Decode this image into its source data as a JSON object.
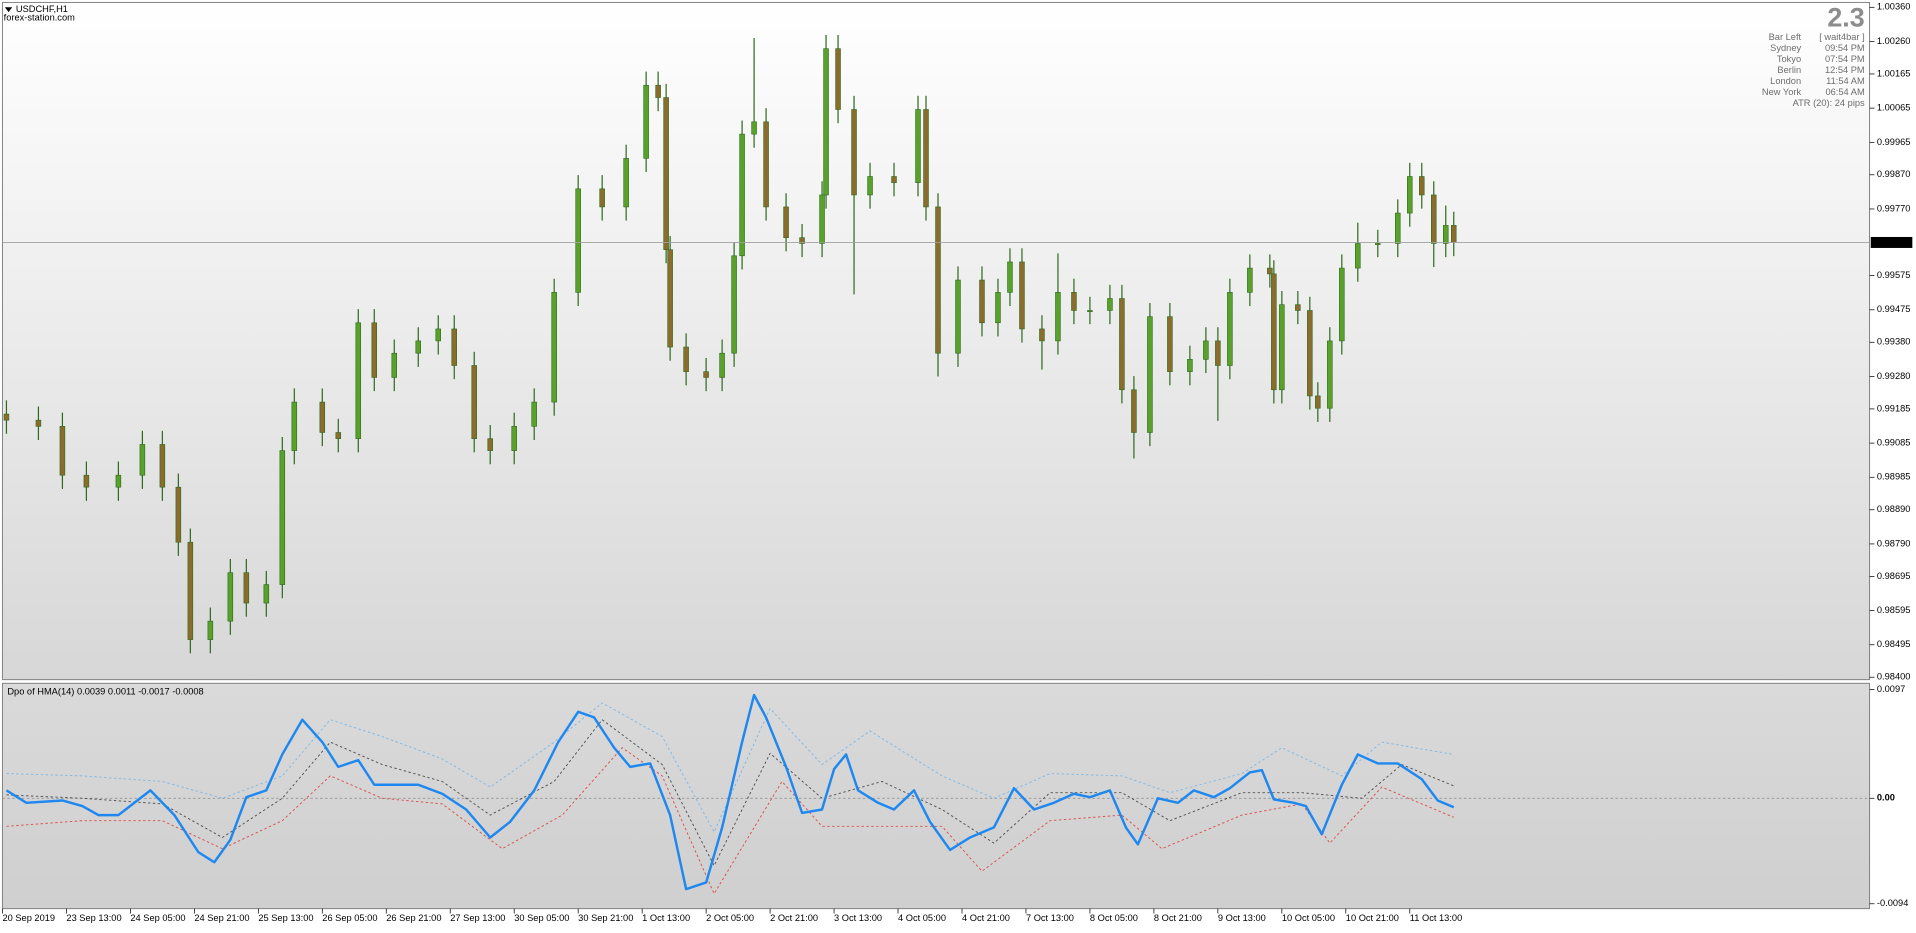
{
  "chart_data": [
    {
      "type": "candlestick",
      "title": "USDCHF,H1",
      "subtitle": "forex-station.com",
      "up_color": "#58a12a",
      "down_color": "#8a6d2c",
      "wick_color": "#2f6b1f",
      "xlim": [
        0,
        467
      ],
      "xticks": [
        {
          "value": 0,
          "label": "20 Sep 2019"
        },
        {
          "value": 16,
          "label": "23 Sep 13:00"
        },
        {
          "value": 32,
          "label": "24 Sep 05:00"
        },
        {
          "value": 48,
          "label": "24 Sep 21:00"
        },
        {
          "value": 64,
          "label": "25 Sep 13:00"
        },
        {
          "value": 80,
          "label": "26 Sep 05:00"
        },
        {
          "value": 96,
          "label": "26 Sep 21:00"
        },
        {
          "value": 112,
          "label": "27 Sep 13:00"
        },
        {
          "value": 128,
          "label": "30 Sep 05:00"
        },
        {
          "value": 144,
          "label": "30 Sep 21:00"
        },
        {
          "value": 160,
          "label": "1 Oct 13:00"
        },
        {
          "value": 176,
          "label": "2 Oct 05:00"
        },
        {
          "value": 192,
          "label": "2 Oct 21:00"
        },
        {
          "value": 208,
          "label": "3 Oct 13:00"
        },
        {
          "value": 224,
          "label": "4 Oct 05:00"
        },
        {
          "value": 240,
          "label": "4 Oct 21:00"
        },
        {
          "value": 256,
          "label": "7 Oct 13:00"
        },
        {
          "value": 272,
          "label": "8 Oct 05:00"
        },
        {
          "value": 288,
          "label": "8 Oct 21:00"
        },
        {
          "value": 304,
          "label": "9 Oct 13:00"
        },
        {
          "value": 320,
          "label": "10 Oct 05:00"
        },
        {
          "value": 336,
          "label": "10 Oct 21:00"
        },
        {
          "value": 352,
          "label": "11 Oct 13:00"
        }
      ],
      "ylim": [
        0.984,
        1.0036
      ],
      "yticks": [
        {
          "value": 1.0036,
          "label": "1.00360"
        },
        {
          "value": 1.0026,
          "label": "1.00260"
        },
        1.00165,
        1.00065,
        0.99965,
        {
          "value": 0.9987,
          "label": "0.99870"
        },
        {
          "value": 0.9977,
          "label": "0.99770"
        },
        0.99575,
        0.99475,
        {
          "value": 0.9938,
          "label": "0.99380"
        },
        {
          "value": 0.9928,
          "label": "0.99280"
        },
        0.99185,
        0.99085,
        0.98985,
        {
          "value": 0.9889,
          "label": "0.98890"
        },
        {
          "value": 0.9879,
          "label": "0.98790"
        },
        0.98695,
        0.98595,
        0.98495,
        {
          "value": 0.984,
          "label": "0.98400"
        }
      ],
      "current_price": 0.99672,
      "info": {
        "big": "2.3",
        "rows": [
          [
            "Bar Left",
            "[ wait4bar ]"
          ],
          [
            "Sydney",
            "09:54 PM"
          ],
          [
            "Tokyo",
            "07:54 PM"
          ],
          [
            "Berlin",
            "12:54 PM"
          ],
          [
            "London",
            "11:54 AM"
          ],
          [
            "New York",
            "06:54 AM"
          ]
        ],
        "footer": "ATR (20): 24 pips"
      },
      "x": [
        1,
        9,
        15,
        21,
        29,
        35,
        40,
        44,
        47,
        52,
        57,
        61,
        66,
        70,
        73,
        80,
        84,
        89,
        93,
        98,
        104,
        109,
        113,
        118,
        122,
        128,
        133,
        138,
        144,
        150,
        156,
        161,
        164,
        166,
        167,
        171,
        176,
        180,
        183,
        185,
        188,
        191,
        196,
        200,
        205,
        206,
        209,
        213,
        217,
        223,
        229,
        231,
        234,
        239,
        245,
        249,
        252,
        255,
        260,
        264,
        268,
        272,
        277,
        280,
        283,
        287,
        292,
        297,
        301,
        304,
        307,
        312,
        317,
        318,
        320,
        324,
        327,
        329,
        332,
        335,
        339,
        344,
        349,
        352,
        355,
        358,
        361,
        363
      ],
      "open": [
        0.9917,
        0.99152,
        0.99134,
        0.98991,
        0.98956,
        0.98991,
        0.99081,
        0.98956,
        0.98795,
        0.9851,
        0.98564,
        0.98706,
        0.98617,
        0.98671,
        0.99063,
        0.99205,
        0.99116,
        0.99098,
        0.99437,
        0.99277,
        0.99348,
        0.99384,
        0.99419,
        0.99312,
        0.99098,
        0.99063,
        0.99134,
        0.99205,
        0.99526,
        0.99829,
        0.99776,
        0.99918,
        1.00132,
        1.00096,
        0.99651,
        0.99366,
        0.99294,
        0.99277,
        0.99348,
        0.99633,
        0.99989,
        1.00025,
        0.99776,
        0.99686,
        0.99669,
        0.99811,
        1.00239,
        1.00061,
        0.99811,
        0.99865,
        0.99847,
        1.00061,
        0.99776,
        0.99348,
        0.99562,
        0.99437,
        0.99526,
        0.99615,
        0.99419,
        0.99384,
        0.99526,
        0.99473,
        0.99473,
        0.99508,
        0.99241,
        0.99116,
        0.99455,
        0.99294,
        0.9933,
        0.99384,
        0.99312,
        0.99526,
        0.99597,
        0.9958,
        0.99241,
        0.9949,
        0.99473,
        0.99223,
        0.99187,
        0.99384,
        0.99597,
        0.99669,
        0.99669,
        0.99758,
        0.99865,
        0.99811,
        0.99669,
        0.99722
      ],
      "high": [
        0.9921,
        0.99192,
        0.99174,
        0.99031,
        0.99031,
        0.99121,
        0.99121,
        0.98996,
        0.98835,
        0.98604,
        0.98746,
        0.98746,
        0.98711,
        0.99103,
        0.99245,
        0.99245,
        0.99156,
        0.99477,
        0.99477,
        0.99388,
        0.99424,
        0.99459,
        0.99459,
        0.99352,
        0.99138,
        0.99174,
        0.99245,
        0.99566,
        0.99869,
        0.99869,
        0.99958,
        1.00172,
        1.00172,
        1.00136,
        0.99691,
        0.99406,
        0.99334,
        0.99388,
        0.99673,
        1.00029,
        1.0027,
        1.00065,
        0.99816,
        0.99726,
        0.99851,
        1.00279,
        1.00279,
        1.00101,
        0.99905,
        0.99905,
        1.00101,
        1.00101,
        0.99816,
        0.99602,
        0.99602,
        0.99566,
        0.99655,
        0.99655,
        0.99459,
        0.9964,
        0.99566,
        0.99513,
        0.99548,
        0.99548,
        0.99281,
        0.99495,
        0.99495,
        0.9937,
        0.99424,
        0.99424,
        0.99566,
        0.99637,
        0.99637,
        0.9962,
        0.9953,
        0.9953,
        0.99513,
        0.99263,
        0.99424,
        0.99637,
        0.9973,
        0.99709,
        0.99798,
        0.99905,
        0.99905,
        0.99851,
        0.9978,
        0.99762
      ],
      "low": [
        0.99112,
        0.99094,
        0.98951,
        0.98916,
        0.98916,
        0.98951,
        0.98916,
        0.98755,
        0.9847,
        0.9847,
        0.98524,
        0.98577,
        0.98577,
        0.98631,
        0.99023,
        0.99076,
        0.99058,
        0.99058,
        0.99237,
        0.99237,
        0.99308,
        0.99344,
        0.99272,
        0.99058,
        0.99023,
        0.99023,
        0.99094,
        0.99165,
        0.99486,
        0.99736,
        0.99736,
        0.99878,
        1.00056,
        0.99611,
        0.99326,
        0.99254,
        0.99237,
        0.99237,
        0.99308,
        0.99593,
        0.99949,
        0.99736,
        0.99646,
        0.99629,
        0.99629,
        0.99771,
        1.00021,
        0.9952,
        0.99771,
        0.99807,
        0.99807,
        0.99736,
        0.9928,
        0.99308,
        0.99397,
        0.99397,
        0.99486,
        0.99379,
        0.993,
        0.99344,
        0.99433,
        0.99433,
        0.99433,
        0.99201,
        0.9904,
        0.99076,
        0.99254,
        0.99254,
        0.9929,
        0.9915,
        0.99272,
        0.99486,
        0.9954,
        0.99201,
        0.99201,
        0.99433,
        0.99183,
        0.99147,
        0.99147,
        0.99344,
        0.99557,
        0.99629,
        0.99629,
        0.99718,
        0.99771,
        0.996,
        0.99629,
        0.99632
      ],
      "close": [
        0.99152,
        0.99134,
        0.98991,
        0.98956,
        0.98991,
        0.99081,
        0.98956,
        0.98795,
        0.9851,
        0.98564,
        0.98706,
        0.98617,
        0.98671,
        0.99063,
        0.99205,
        0.99116,
        0.99098,
        0.99437,
        0.99277,
        0.99348,
        0.99384,
        0.99419,
        0.99312,
        0.99098,
        0.99063,
        0.99134,
        0.99205,
        0.99526,
        0.99829,
        0.99776,
        0.99918,
        1.00132,
        1.00096,
        0.99651,
        0.99366,
        0.99294,
        0.99277,
        0.99348,
        0.99633,
        0.99989,
        1.00025,
        0.99776,
        0.99686,
        0.99669,
        0.99811,
        1.00239,
        1.00061,
        0.99811,
        0.99865,
        0.99847,
        1.00061,
        0.99776,
        0.99348,
        0.99562,
        0.99437,
        0.99526,
        0.99615,
        0.99419,
        0.99384,
        0.99526,
        0.99473,
        0.99473,
        0.99508,
        0.99241,
        0.99116,
        0.99455,
        0.99294,
        0.9933,
        0.99384,
        0.99312,
        0.99526,
        0.99597,
        0.9958,
        0.99241,
        0.9949,
        0.99473,
        0.99223,
        0.99187,
        0.99384,
        0.99597,
        0.99669,
        0.99669,
        0.99758,
        0.99865,
        0.99811,
        0.99669,
        0.99722,
        0.99672
      ]
    },
    {
      "type": "line",
      "title": "Dpo of HMA(14) 0.0039 0.0011 -0.0017 -0.0008",
      "ylim": [
        -0.0094,
        0.0097
      ],
      "yticks": [
        0.0097,
        {
          "value": 0,
          "label": "0.00"
        },
        -0.0094
      ],
      "series": [
        {
          "color": "#7fb9e6",
          "line_style": "dashed",
          "x": [
            1,
            20,
            40,
            55,
            70,
            82,
            95,
            110,
            122,
            138,
            150,
            165,
            178,
            192,
            205,
            217,
            235,
            248,
            262,
            280,
            292,
            310,
            320,
            335,
            345,
            363
          ],
          "values": [
            0.0022,
            0.002,
            0.0015,
            0,
            0.002,
            0.007,
            0.0055,
            0.0035,
            0.001,
            0.005,
            0.0085,
            0.0055,
            -0.003,
            0.008,
            0.003,
            0.006,
            0.002,
            0,
            0.0022,
            0.002,
            0.0005,
            0.0022,
            0.0045,
            0.002,
            0.005,
            0.0039
          ]
        },
        {
          "color": "#555555",
          "line_style": "dashed",
          "x": [
            1,
            20,
            40,
            55,
            70,
            82,
            95,
            110,
            122,
            138,
            150,
            165,
            178,
            192,
            205,
            220,
            235,
            248,
            262,
            280,
            292,
            310,
            325,
            340,
            350,
            363
          ],
          "values": [
            0.0003,
            0,
            -0.0005,
            -0.0035,
            0,
            0.005,
            0.003,
            0.0015,
            -0.0015,
            0.0015,
            0.007,
            0.003,
            -0.006,
            0.004,
            0,
            0.0015,
            -0.001,
            -0.004,
            0.0005,
            0.0005,
            -0.002,
            0.0005,
            0.0005,
            0,
            0.003,
            0.0011
          ]
        },
        {
          "color": "#d9534f",
          "line_style": "dashed",
          "x": [
            1,
            20,
            40,
            55,
            70,
            82,
            95,
            110,
            125,
            140,
            155,
            165,
            178,
            195,
            205,
            220,
            235,
            245,
            262,
            280,
            290,
            310,
            325,
            332,
            345,
            363
          ],
          "values": [
            -0.0025,
            -0.002,
            -0.002,
            -0.0045,
            -0.002,
            0.002,
            0,
            -0.0005,
            -0.0045,
            -0.0015,
            0.0045,
            0.002,
            -0.0085,
            0.0015,
            -0.0025,
            -0.0025,
            -0.0025,
            -0.0065,
            -0.002,
            -0.0015,
            -0.0045,
            -0.0015,
            -0.0005,
            -0.004,
            0.001,
            -0.0017
          ]
        },
        {
          "color": "#1e88f0",
          "line_style": "solid",
          "x": [
            1,
            6,
            15,
            20,
            24,
            29,
            37,
            43,
            49,
            53,
            57,
            61,
            66,
            70,
            75,
            80,
            84,
            89,
            93,
            98,
            104,
            110,
            116,
            122,
            127,
            133,
            139,
            144,
            148,
            153,
            157,
            162,
            167,
            171,
            176,
            180,
            185,
            188,
            191,
            196,
            200,
            205,
            208,
            211,
            214,
            219,
            223,
            228,
            232,
            237,
            242,
            248,
            253,
            258,
            263,
            268,
            272,
            277,
            281,
            284,
            289,
            294,
            298,
            303,
            307,
            312,
            315,
            318,
            323,
            326,
            330,
            335,
            339,
            344,
            349,
            355,
            359,
            363
          ],
          "values": [
            0.0007,
            -0.0004,
            -0.0002,
            -0.0007,
            -0.0015,
            -0.0015,
            0.0007,
            -0.0015,
            -0.0048,
            -0.0057,
            -0.0037,
            0.0001,
            0.0007,
            0.0039,
            0.007,
            0.005,
            0.0028,
            0.0034,
            0.0012,
            0.0012,
            0.0012,
            0.0004,
            -0.001,
            -0.0035,
            -0.0021,
            0.0007,
            0.005,
            0.0077,
            0.0072,
            0.0045,
            0.0028,
            0.0031,
            -0.0015,
            -0.0081,
            -0.0075,
            -0.0026,
            0.005,
            0.0092,
            0.0072,
            0.0028,
            -0.0013,
            -0.001,
            0.0026,
            0.0039,
            0.0007,
            -0.0004,
            -0.001,
            0.0007,
            -0.0021,
            -0.0046,
            -0.0035,
            -0.0026,
            0.0009,
            -0.001,
            -0.0004,
            0.0004,
            0.0001,
            0.0007,
            -0.0026,
            -0.0041,
            0,
            -0.0004,
            0.0007,
            0.0001,
            0.0009,
            0.0023,
            0.0025,
            -0.0001,
            -0.0004,
            -0.0007,
            -0.0032,
            0.0012,
            0.0039,
            0.0031,
            0.0031,
            0.0017,
            -0.0002,
            -0.0008
          ]
        }
      ]
    }
  ]
}
